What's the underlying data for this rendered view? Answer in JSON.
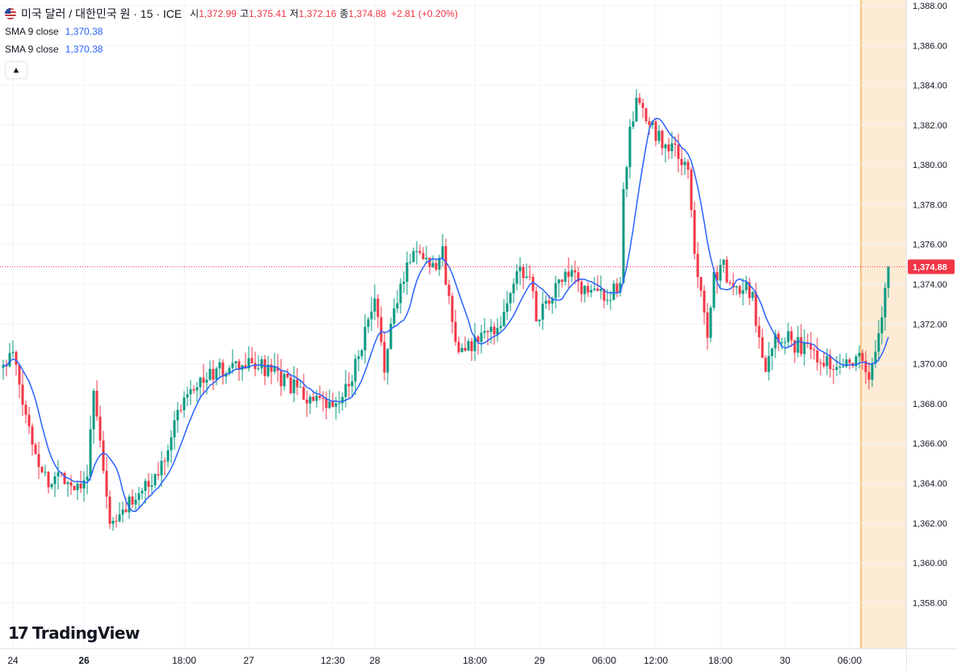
{
  "symbol": {
    "title": "미국 달러 / 대한민국 원 · 15 · ICE",
    "open_label": "시",
    "open": "1,372.99",
    "high_label": "고",
    "high": "1,375.41",
    "low_label": "저",
    "low": "1,372.16",
    "close_label": "종",
    "close": "1,374.88",
    "change": "+2.81 (+0.20%)"
  },
  "indicators": [
    {
      "name": "SMA 9 close",
      "value": "1,370.38"
    },
    {
      "name": "SMA 9 close",
      "value": "1,370.38"
    }
  ],
  "logo": {
    "icon": "tradingview-logo-icon",
    "text": "TradingView"
  },
  "colors": {
    "up": "#089981",
    "down": "#f23645",
    "sma": "#2962ff",
    "session_bg": "#fdebd6",
    "session_line": "#f0b356",
    "grid": "#f0f3fa"
  },
  "chart_data": {
    "type": "candlestick",
    "y_axis": {
      "min": 1357,
      "max": 1388,
      "ticks": [
        "1,388.00",
        "1,386.00",
        "1,384.00",
        "1,382.00",
        "1,380.00",
        "1,378.00",
        "1,376.00",
        "1,374.00",
        "1,372.00",
        "1,370.00",
        "1,368.00",
        "1,366.00",
        "1,364.00",
        "1,362.00",
        "1,360.00",
        "1,358.00"
      ]
    },
    "x_axis": {
      "labels": [
        {
          "text": "24",
          "bold": false,
          "idx": 3
        },
        {
          "text": "26",
          "bold": true,
          "idx": 25
        },
        {
          "text": "18:00",
          "bold": false,
          "idx": 56
        },
        {
          "text": "27",
          "bold": false,
          "idx": 76
        },
        {
          "text": "12:30",
          "bold": false,
          "idx": 102
        },
        {
          "text": "28",
          "bold": false,
          "idx": 115
        },
        {
          "text": "18:00",
          "bold": false,
          "idx": 146
        },
        {
          "text": "29",
          "bold": false,
          "idx": 166
        },
        {
          "text": "06:00",
          "bold": false,
          "idx": 186
        },
        {
          "text": "12:00",
          "bold": false,
          "idx": 202
        },
        {
          "text": "18:00",
          "bold": false,
          "idx": 222
        },
        {
          "text": "30",
          "bold": false,
          "idx": 242
        },
        {
          "text": "06:00",
          "bold": false,
          "idx": 262
        }
      ]
    },
    "current_price": 1374.88,
    "current_price_label": "1,374.88",
    "session_start_index": 266,
    "anchors": [
      [
        0,
        1369.8
      ],
      [
        3,
        1370.5
      ],
      [
        6,
        1368.0
      ],
      [
        10,
        1365.5
      ],
      [
        14,
        1364.0
      ],
      [
        18,
        1364.5
      ],
      [
        22,
        1363.8
      ],
      [
        26,
        1364.5
      ],
      [
        28,
        1368.5
      ],
      [
        30,
        1366.0
      ],
      [
        32,
        1363.0
      ],
      [
        34,
        1361.8
      ],
      [
        37,
        1362.5
      ],
      [
        41,
        1363.5
      ],
      [
        45,
        1363.8
      ],
      [
        48,
        1364.5
      ],
      [
        52,
        1366.5
      ],
      [
        55,
        1368.0
      ],
      [
        58,
        1369.0
      ],
      [
        62,
        1369.2
      ],
      [
        66,
        1369.6
      ],
      [
        72,
        1369.8
      ],
      [
        78,
        1370.0
      ],
      [
        84,
        1369.4
      ],
      [
        90,
        1368.8
      ],
      [
        95,
        1368.2
      ],
      [
        100,
        1367.8
      ],
      [
        103,
        1367.8
      ],
      [
        106,
        1368.6
      ],
      [
        110,
        1370.5
      ],
      [
        112,
        1371.5
      ],
      [
        115,
        1373.0
      ],
      [
        118,
        1370.0
      ],
      [
        121,
        1372.5
      ],
      [
        124,
        1374.5
      ],
      [
        127,
        1375.8
      ],
      [
        130,
        1375.5
      ],
      [
        133,
        1375.0
      ],
      [
        136,
        1375.5
      ],
      [
        139,
        1372.0
      ],
      [
        142,
        1370.5
      ],
      [
        145,
        1370.8
      ],
      [
        148,
        1371.5
      ],
      [
        151,
        1371.5
      ],
      [
        155,
        1372.5
      ],
      [
        159,
        1374.5
      ],
      [
        162,
        1374.8
      ],
      [
        165,
        1372.5
      ],
      [
        168,
        1372.8
      ],
      [
        171,
        1373.8
      ],
      [
        175,
        1374.5
      ],
      [
        179,
        1373.8
      ],
      [
        183,
        1373.5
      ],
      [
        188,
        1373.5
      ],
      [
        191,
        1373.8
      ],
      [
        192,
        1379.0
      ],
      [
        194,
        1381.5
      ],
      [
        196,
        1383.0
      ],
      [
        198,
        1382.5
      ],
      [
        201,
        1381.8
      ],
      [
        205,
        1381.0
      ],
      [
        209,
        1380.5
      ],
      [
        212,
        1379.5
      ],
      [
        214,
        1375.5
      ],
      [
        216,
        1374.0
      ],
      [
        218,
        1371.5
      ],
      [
        220,
        1374.5
      ],
      [
        223,
        1374.8
      ],
      [
        226,
        1373.5
      ],
      [
        229,
        1374.0
      ],
      [
        232,
        1373.5
      ],
      [
        234,
        1371.0
      ],
      [
        236,
        1370.0
      ],
      [
        239,
        1371.5
      ],
      [
        242,
        1371.5
      ],
      [
        245,
        1371.0
      ],
      [
        248,
        1370.8
      ],
      [
        252,
        1370.5
      ],
      [
        256,
        1370.0
      ],
      [
        260,
        1370.2
      ],
      [
        264,
        1370.2
      ],
      [
        266,
        1370.3
      ],
      [
        268,
        1369.0
      ],
      [
        270,
        1370.5
      ],
      [
        272,
        1372.5
      ],
      [
        274,
        1374.88
      ]
    ],
    "sma_period": 9,
    "volatility": 0.9,
    "seed": 11
  }
}
